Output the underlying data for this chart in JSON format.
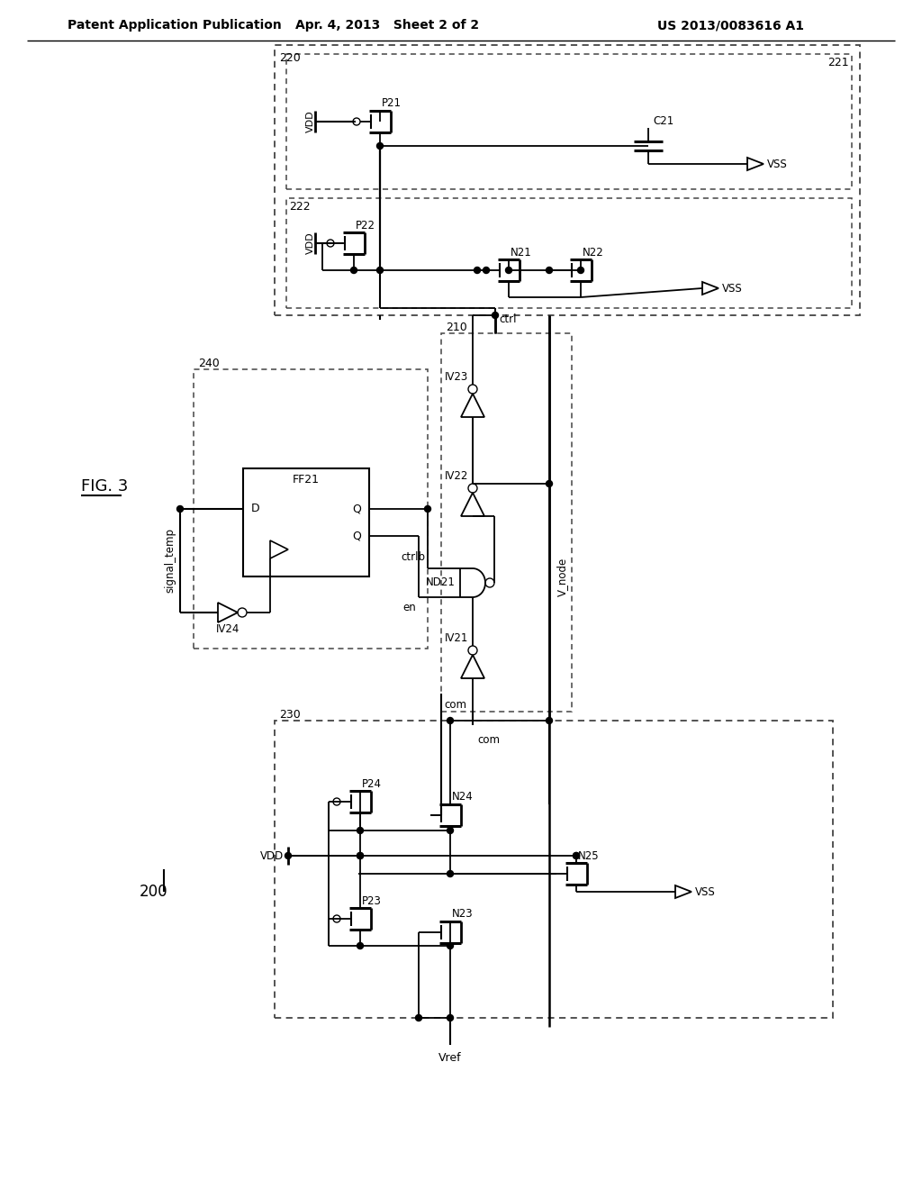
{
  "bg_color": "#ffffff",
  "header_left": "Patent Application Publication",
  "header_center": "Apr. 4, 2013   Sheet 2 of 2",
  "header_right": "US 2013/0083616 A1"
}
